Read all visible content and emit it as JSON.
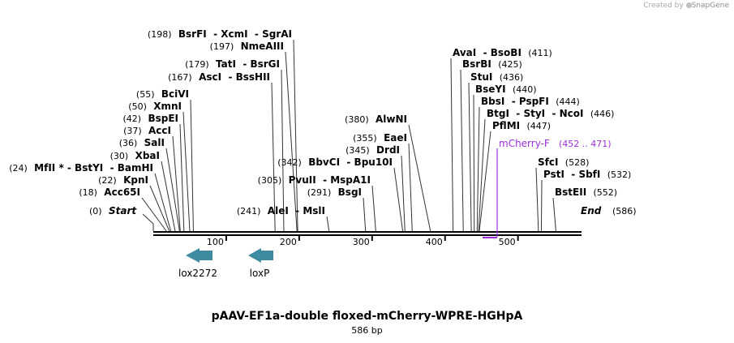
{
  "credit": {
    "prefix": "Created by",
    "brand": "SnapGene"
  },
  "title": "pAAV-EF1a-double floxed-mCherry-WPRE-HGHpA",
  "size_label": "586 bp",
  "sequence_length": 586,
  "axis_ticks": [
    "100",
    "200",
    "300",
    "400",
    "500"
  ],
  "start_label": {
    "pos": "(0)",
    "name": "Start"
  },
  "end_label": {
    "name": "End",
    "pos": "(586)"
  },
  "sites": [
    {
      "text": "(198)  BsrFI  - XcmI  - SgrAI",
      "pos": 198
    },
    {
      "text": "(197)  NmeAIII",
      "pos": 197
    },
    {
      "text": "(179)  TatI  - BsrGI",
      "pos": 179
    },
    {
      "text": "(167)  AscI  - BssHII",
      "pos": 167
    },
    {
      "text": "(55)  BciVI",
      "pos": 55
    },
    {
      "text": "(50)  XmnI",
      "pos": 50
    },
    {
      "text": "(42)  BspEI",
      "pos": 42
    },
    {
      "text": "(37)  AccI",
      "pos": 37
    },
    {
      "text": "(36)  SalI",
      "pos": 36
    },
    {
      "text": "(30)  XbaI",
      "pos": 30
    },
    {
      "text": "(24)  MfII * - BstYI  - BamHI",
      "pos": 24
    },
    {
      "text": "(22)  KpnI",
      "pos": 22
    },
    {
      "text": "(18)  Acc65I",
      "pos": 18
    },
    {
      "text": "(342)  BbvCI  - Bpu10I",
      "pos": 342
    },
    {
      "text": "(305)  PvuII  - MspA1I",
      "pos": 305
    },
    {
      "text": "(291)  BsgI",
      "pos": 291
    },
    {
      "text": "(241)  AleI  - MslI",
      "pos": 241
    },
    {
      "text": "(380)  AlwNI",
      "pos": 380
    },
    {
      "text": "(355)  EaeI",
      "pos": 355
    },
    {
      "text": "(345)  DrdI",
      "pos": 345
    },
    {
      "text": "AvaI  - BsoBI  (411)",
      "pos": 411
    },
    {
      "text": "BsrBI  (425)",
      "pos": 425
    },
    {
      "text": "StuI  (436)",
      "pos": 436
    },
    {
      "text": "BseYI  (440)",
      "pos": 440
    },
    {
      "text": "BbsI  - PspFI  (444)",
      "pos": 444
    },
    {
      "text": "BtgI  - StyI  - NcoI  (446)",
      "pos": 446
    },
    {
      "text": "PflMI  (447)",
      "pos": 447
    },
    {
      "text": "SfcI  (528)",
      "pos": 528
    },
    {
      "text": "PstI  - SbfI  (532)",
      "pos": 532
    },
    {
      "text": "BstEII  (552)",
      "pos": 552
    }
  ],
  "primer": {
    "name": "mCherry-F",
    "range": "(452 .. 471)",
    "color": "#9b30d9",
    "start": 452,
    "end": 471
  },
  "features": [
    {
      "name": "lox2272",
      "direction": "reverse",
      "color": "#3d8aa1"
    },
    {
      "name": "loxP",
      "direction": "reverse",
      "color": "#3d8aa1"
    }
  ]
}
